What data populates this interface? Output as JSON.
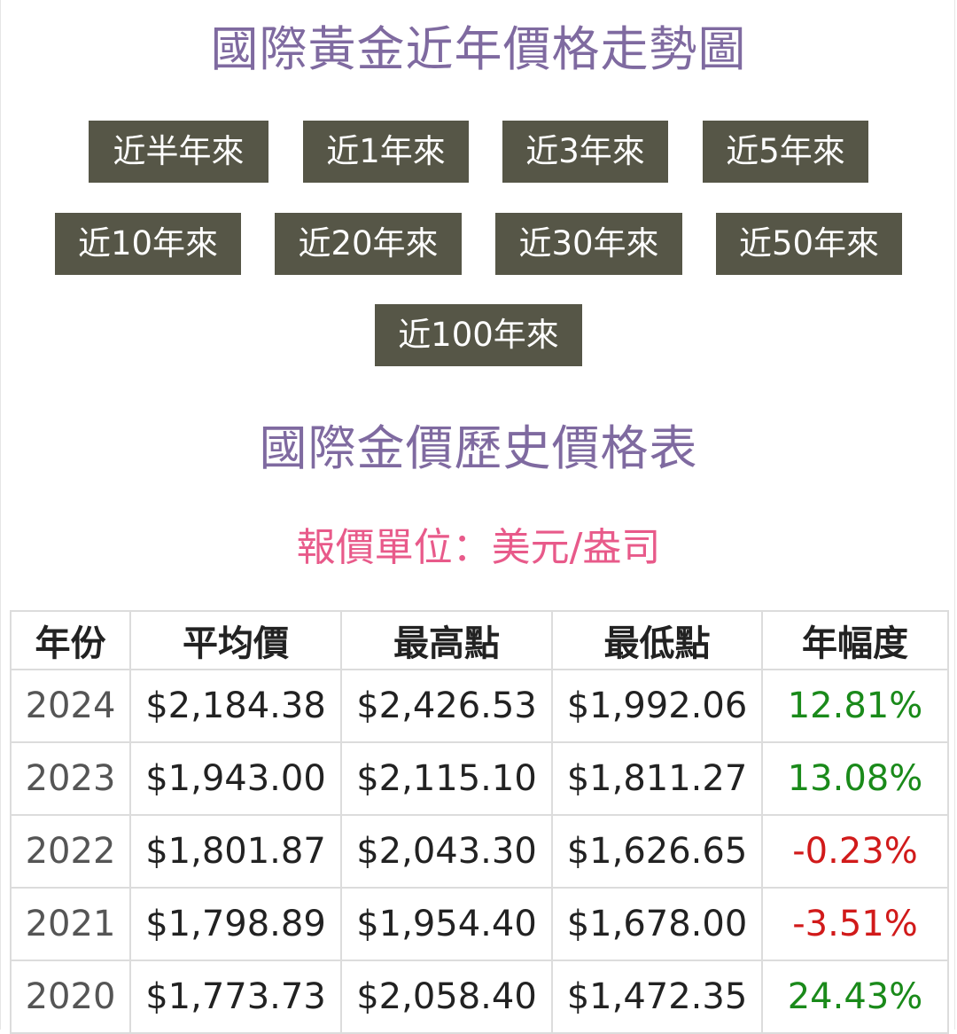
{
  "chart_section": {
    "title": "國際黃金近年價格走勢圖",
    "period_buttons": [
      "近半年來",
      "近1年來",
      "近3年來",
      "近5年來",
      "近10年來",
      "近20年來",
      "近30年來",
      "近50年來",
      "近100年來"
    ]
  },
  "table_section": {
    "title": "國際金價歷史價格表",
    "unit": "報價單位：美元/盎司",
    "headers": [
      "年份",
      "平均價",
      "最高點",
      "最低點",
      "年幅度"
    ],
    "rows": [
      [
        "2024",
        "$2,184.38",
        "$2,426.53",
        "$1,992.06",
        "12.81%"
      ],
      [
        "2023",
        "$1,943.00",
        "$2,115.10",
        "$1,811.27",
        "13.08%"
      ],
      [
        "2022",
        "$1,801.87",
        "$2,043.30",
        "$1,626.65",
        "-0.23%"
      ],
      [
        "2021",
        "$1,798.89",
        "$1,954.40",
        "$1,678.00",
        "-3.51%"
      ],
      [
        "2020",
        "$1,773.73",
        "$2,058.40",
        "$1,472.35",
        "24.43%"
      ]
    ]
  },
  "colors": {
    "title": "#7f6aa0",
    "unit": "#e85a8a",
    "button_bg": "#565647",
    "positive": "#1a8a1a",
    "negative": "#d11a1a"
  }
}
